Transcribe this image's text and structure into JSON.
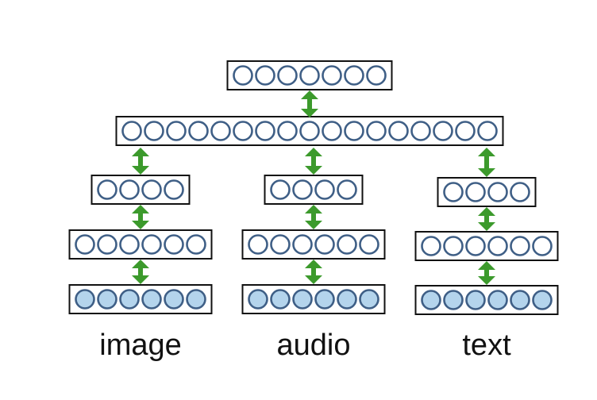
{
  "colors": {
    "unit_stroke": "#3f5f86",
    "hidden_fill": "#ffffff",
    "input_fill": "#b4d4ec",
    "box_stroke": "#111111",
    "arrow": "#3c9a2c"
  },
  "shared": {
    "joint_units": 17,
    "top_units": 7
  },
  "modalities": [
    {
      "label": "image",
      "input_units": 6,
      "hidden1_units": 6,
      "hidden2_units": 4
    },
    {
      "label": "audio",
      "input_units": 6,
      "hidden1_units": 6,
      "hidden2_units": 4
    },
    {
      "label": "text",
      "input_units": 6,
      "hidden1_units": 6,
      "hidden2_units": 4
    }
  ]
}
